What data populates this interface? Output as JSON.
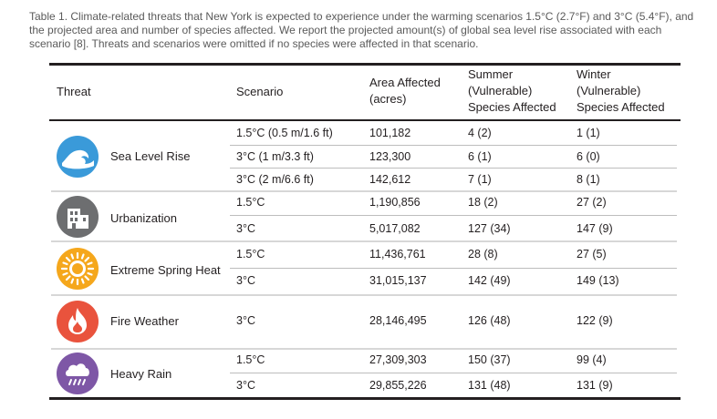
{
  "caption": "Table 1. Climate-related threats that New York is expected to experience under the warming scenarios 1.5°C (2.7°F) and 3°C (5.4°F), and the projected area and number of species affected. We report the projected amount(s) of global sea level rise associated with each scenario [8]. Threats and scenarios were omitted if no species were affected in that scenario.",
  "headers": {
    "threat": "Threat",
    "scenario": "Scenario",
    "area_l1": "Area Affected",
    "area_l2": "(acres)",
    "summer_l1": "Summer",
    "summer_l2": "(Vulnerable)",
    "summer_l3": "Species Affected",
    "winter_l1": "Winter",
    "winter_l2": "(Vulnerable)",
    "winter_l3": "Species Affected"
  },
  "colors": {
    "sea_level_rise": "#3a9ad9",
    "urbanization": "#6d6e70",
    "extreme_spring_heat": "#f5a71c",
    "fire_weather": "#e9533d",
    "heavy_rain": "#7e57a6"
  },
  "threats": [
    {
      "name": "Sea Level Rise",
      "icon": "wave-icon",
      "rows": [
        {
          "scenario": "1.5°C (0.5 m/1.6 ft)",
          "area": "101,182",
          "summer": "4 (2)",
          "winter": "1 (1)"
        },
        {
          "scenario": "3°C (1 m/3.3 ft)",
          "area": "123,300",
          "summer": "6 (1)",
          "winter": "6 (0)"
        },
        {
          "scenario": "3°C (2 m/6.6 ft)",
          "area": "142,612",
          "summer": "7 (1)",
          "winter": "8 (1)"
        }
      ]
    },
    {
      "name": "Urbanization",
      "icon": "building-icon",
      "rows": [
        {
          "scenario": "1.5°C",
          "area": "1,190,856",
          "summer": "18 (2)",
          "winter": "27 (2)"
        },
        {
          "scenario": "3°C",
          "area": "5,017,082",
          "summer": "127 (34)",
          "winter": "147 (9)"
        }
      ]
    },
    {
      "name": "Extreme Spring Heat",
      "icon": "sun-icon",
      "rows": [
        {
          "scenario": "1.5°C",
          "area": "11,436,761",
          "summer": "28 (8)",
          "winter": "27 (5)"
        },
        {
          "scenario": "3°C",
          "area": "31,015,137",
          "summer": "142 (49)",
          "winter": "149 (13)"
        }
      ]
    },
    {
      "name": "Fire Weather",
      "icon": "flame-icon",
      "rows": [
        {
          "scenario": "3°C",
          "area": "28,146,495",
          "summer": "126 (48)",
          "winter": "122 (9)"
        }
      ]
    },
    {
      "name": "Heavy Rain",
      "icon": "rain-cloud-icon",
      "rows": [
        {
          "scenario": "1.5°C",
          "area": "27,309,303",
          "summer": "150 (37)",
          "winter": "99 (4)"
        },
        {
          "scenario": "3°C",
          "area": "29,855,226",
          "summer": "131 (48)",
          "winter": "131 (9)"
        }
      ]
    }
  ]
}
